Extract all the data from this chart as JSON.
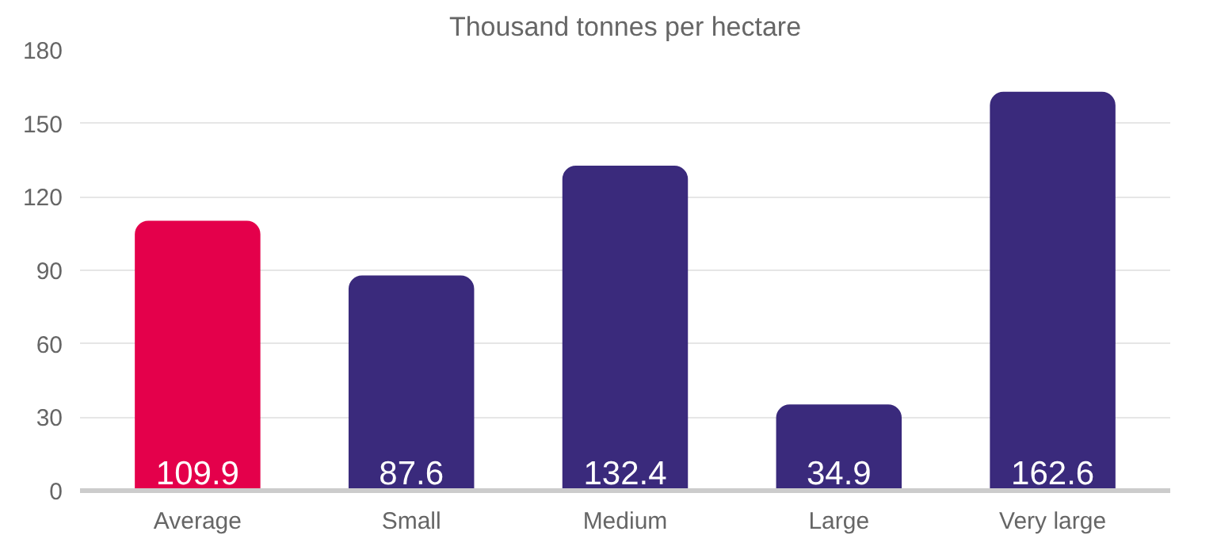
{
  "chart_data": {
    "type": "bar",
    "title": "Thousand tonnes per hectare",
    "categories": [
      "Average",
      "Small",
      "Medium",
      "Large",
      "Very large"
    ],
    "values": [
      109.9,
      87.6,
      132.4,
      34.9,
      162.6
    ],
    "colors": [
      "#e4004b",
      "#3a2a7c",
      "#3a2a7c",
      "#3a2a7c",
      "#3a2a7c"
    ],
    "ylim": [
      0,
      180
    ],
    "yticks": [
      0,
      30,
      60,
      90,
      120,
      150,
      180
    ],
    "grid": "y",
    "data_labels": true
  }
}
